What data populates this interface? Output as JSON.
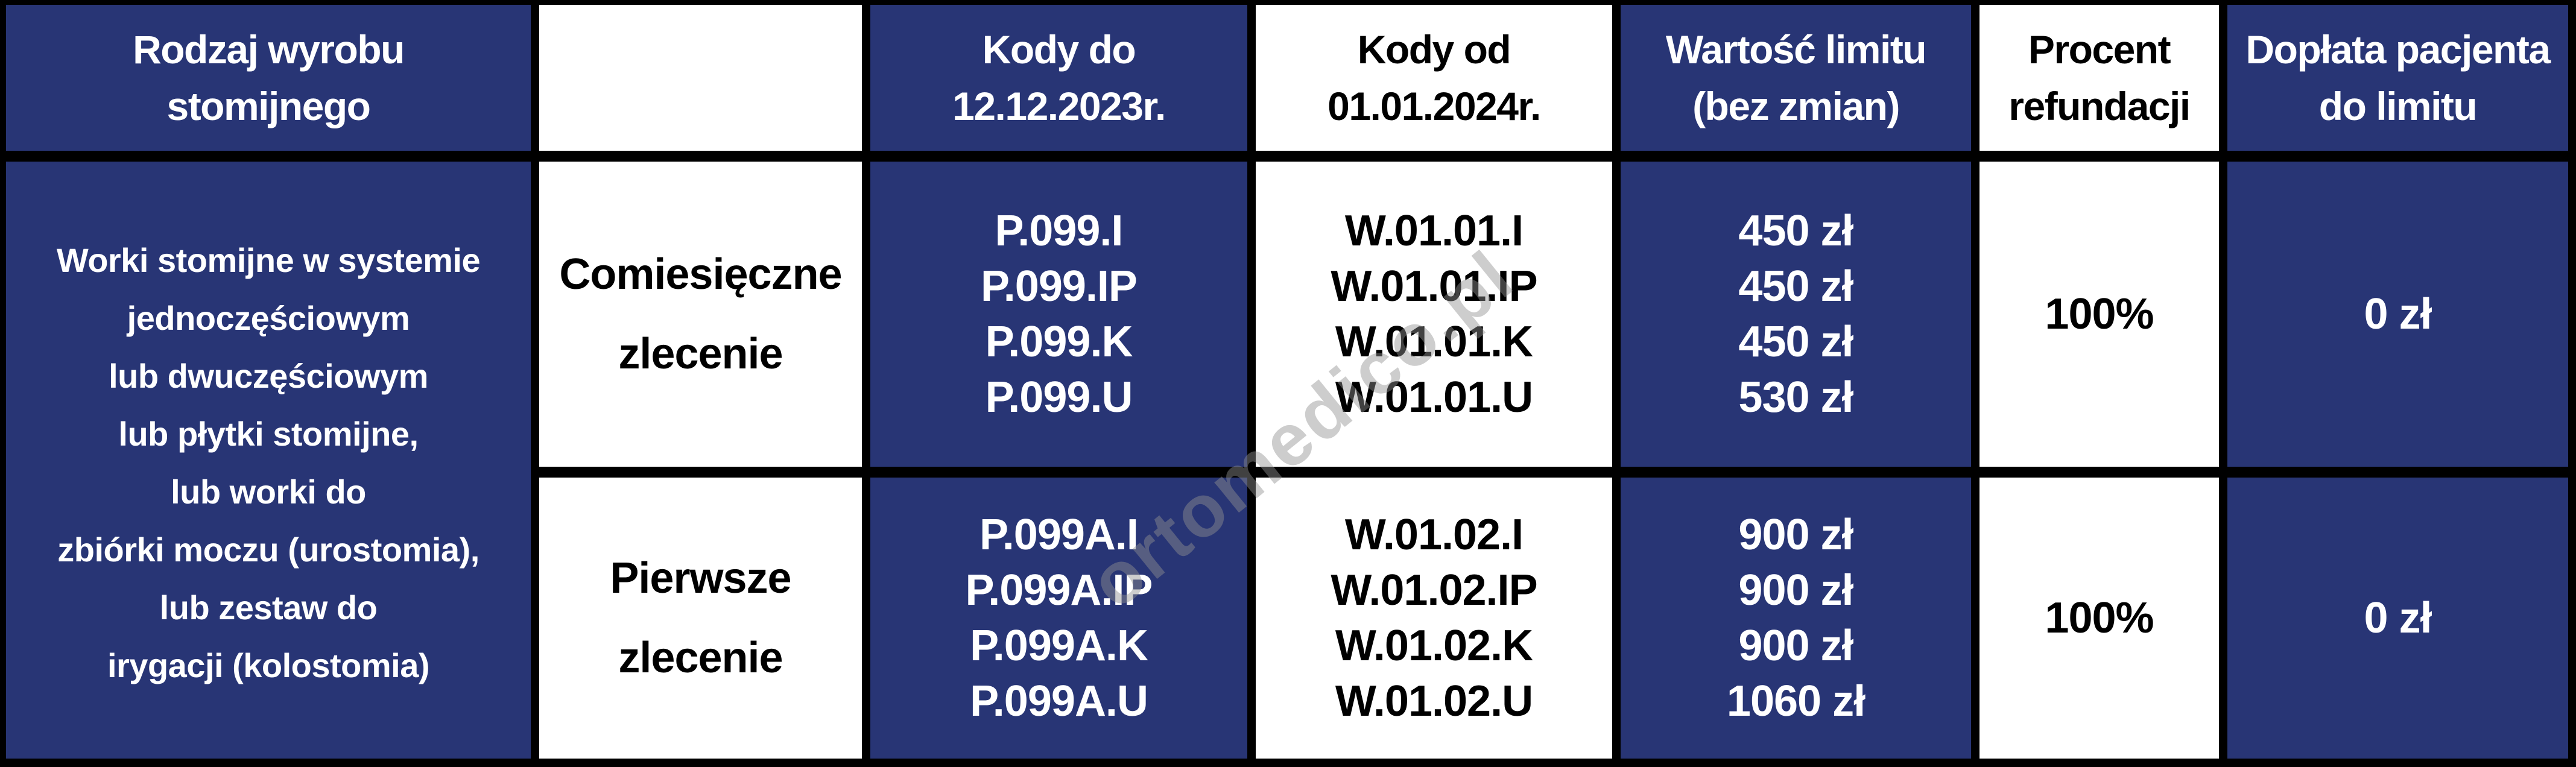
{
  "watermark": "ortomedico.pl",
  "colors": {
    "cell_blue": "#283575",
    "cell_white": "#ffffff",
    "grid_border": "#000000",
    "text_on_blue": "#ffffff",
    "text_on_white": "#000000",
    "watermark_gray": "#919191"
  },
  "header": {
    "product_type": [
      "Rodzaj wyrobu",
      "stomijnego"
    ],
    "order_type": "",
    "codes_until": [
      "Kody do",
      "12.12.2023r."
    ],
    "codes_from": [
      "Kody od",
      "01.01.2024r."
    ],
    "limit_value": [
      "Wartość limitu",
      "(bez zmian)"
    ],
    "refund_percent": [
      "Procent",
      "refundacji"
    ],
    "patient_copay": [
      "Dopłata pacjenta",
      "do limitu"
    ]
  },
  "product_description": {
    "lines": [
      "Worki stomijne w systemie",
      "jednoczęściowym",
      "lub dwuczęściowym",
      "lub płytki stomijne,",
      "lub worki do",
      "zbiórki moczu (urostomia),",
      "lub zestaw do",
      "irygacji (kolostomia)"
    ]
  },
  "rows": [
    {
      "order_type": [
        "Comiesięczne",
        "zlecenie"
      ],
      "codes_until": [
        "P.099.I",
        "P.099.IP",
        "P.099.K",
        "P.099.U"
      ],
      "codes_from": [
        "W.01.01.I",
        "W.01.01.IP",
        "W.01.01.K",
        "W.01.01.U"
      ],
      "limit_values": [
        "450 zł",
        "450 zł",
        "450 zł",
        "530 zł"
      ],
      "refund_percent": "100%",
      "patient_copay": "0 zł"
    },
    {
      "order_type": [
        "Pierwsze",
        "zlecenie"
      ],
      "codes_until": [
        "P.099A.I",
        "P.099A.IP",
        "P.099A.K",
        "P.099A.U"
      ],
      "codes_from": [
        "W.01.02.I",
        "W.01.02.IP",
        "W.01.02.K",
        "W.01.02.U"
      ],
      "limit_values": [
        "900 zł",
        "900 zł",
        "900 zł",
        "1060 zł"
      ],
      "refund_percent": "100%",
      "patient_copay": "0 zł"
    }
  ]
}
